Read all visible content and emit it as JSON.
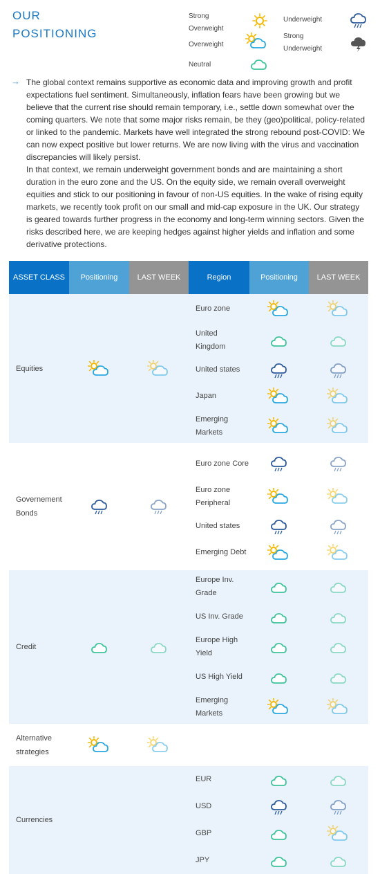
{
  "title": {
    "line1": "OUR",
    "line2": "POSITIONING"
  },
  "legend": {
    "strong_overweight": "Strong Overweight",
    "overweight": "Overweight",
    "neutral": "Neutral",
    "underweight": "Underweight",
    "strong_underweight": "Strong Underweight"
  },
  "intro": {
    "p1": "The global context remains supportive as economic data and improving growth and profit expectations fuel sentiment. Simultaneously, inflation fears have been growing but we believe that the current rise should remain temporary, i.e., settle down somewhat over the coming quarters. We note that some major risks remain, be they (geo)political, policy-related or linked to the pandemic. Markets have well integrated the strong rebound post-COVID: We can now expect positive but lower returns. We are now living with the virus and vaccination discrepancies will likely persist.",
    "p2": "In that context, we remain underweight government bonds and are maintaining a short duration in the euro zone and the US. On the equity side, we remain overall overweight equities and stick to our positioning in favour of non-US equities. In the wake of rising equity markets, we recently took profit on our small and mid-cap exposure in the UK. Our strategy is geared towards further progress in the economy and long-term winning sectors. Given the risks described here, we are keeping hedges against higher yields and inflation and some derivative protections."
  },
  "table": {
    "headers": {
      "asset_class": "ASSET CLASS",
      "positioning": "Positioning",
      "last_week": "LAST WEEK",
      "region": "Region",
      "positioning2": "Positioning",
      "last_week2": "LAST WEEK"
    },
    "groups": [
      {
        "name": "Equities",
        "positioning": "overweight",
        "last_week": "overweight",
        "regions": [
          {
            "name": "Euro zone",
            "positioning": "overweight",
            "last_week": "overweight"
          },
          {
            "name": "United Kingdom",
            "positioning": "neutral",
            "last_week": "neutral"
          },
          {
            "name": "United states",
            "positioning": "underweight",
            "last_week": "underweight"
          },
          {
            "name": "Japan",
            "positioning": "overweight",
            "last_week": "overweight"
          },
          {
            "name": "Emerging Markets",
            "positioning": "overweight",
            "last_week": "overweight"
          }
        ]
      },
      {
        "name": "Governement Bonds",
        "positioning": "underweight",
        "last_week": "underweight",
        "regions": [
          {
            "name": "Euro zone Core",
            "positioning": "underweight",
            "last_week": "underweight"
          },
          {
            "name": "Euro zone Peripheral",
            "positioning": "overweight",
            "last_week": "overweight"
          },
          {
            "name": "United states",
            "positioning": "underweight",
            "last_week": "underweight"
          },
          {
            "name": "Emerging Debt",
            "positioning": "overweight",
            "last_week": "overweight"
          }
        ]
      },
      {
        "name": "Credit",
        "positioning": "neutral",
        "last_week": "neutral",
        "regions": [
          {
            "name": "Europe Inv. Grade",
            "positioning": "neutral",
            "last_week": "neutral"
          },
          {
            "name": "US Inv. Grade",
            "positioning": "neutral",
            "last_week": "neutral"
          },
          {
            "name": "Europe High Yield",
            "positioning": "neutral",
            "last_week": "neutral"
          },
          {
            "name": "US High Yield",
            "positioning": "neutral",
            "last_week": "neutral"
          },
          {
            "name": "Emerging Markets",
            "positioning": "overweight",
            "last_week": "overweight"
          }
        ]
      },
      {
        "name": "Alternative strategies",
        "positioning": "overweight",
        "last_week": "overweight",
        "regions": []
      },
      {
        "name": "Currencies",
        "positioning": "",
        "last_week": "",
        "regions": [
          {
            "name": "EUR",
            "positioning": "neutral",
            "last_week": "neutral"
          },
          {
            "name": "USD",
            "positioning": "underweight",
            "last_week": "underweight"
          },
          {
            "name": "GBP",
            "positioning": "neutral",
            "last_week": "overweight"
          },
          {
            "name": "JPY",
            "positioning": "neutral",
            "last_week": "neutral"
          }
        ]
      }
    ]
  },
  "colors": {
    "header_dark": "#0a72c6",
    "header_light": "#4ea2d6",
    "header_grey": "#949494",
    "row_shade": "#eaf3fb",
    "sun": "#f5b800",
    "cloud_over": "#29a8e0",
    "cloud_neutral": "#3fc39a",
    "cloud_under": "#2d5a9a",
    "cloud_strong_under": "#555555"
  }
}
